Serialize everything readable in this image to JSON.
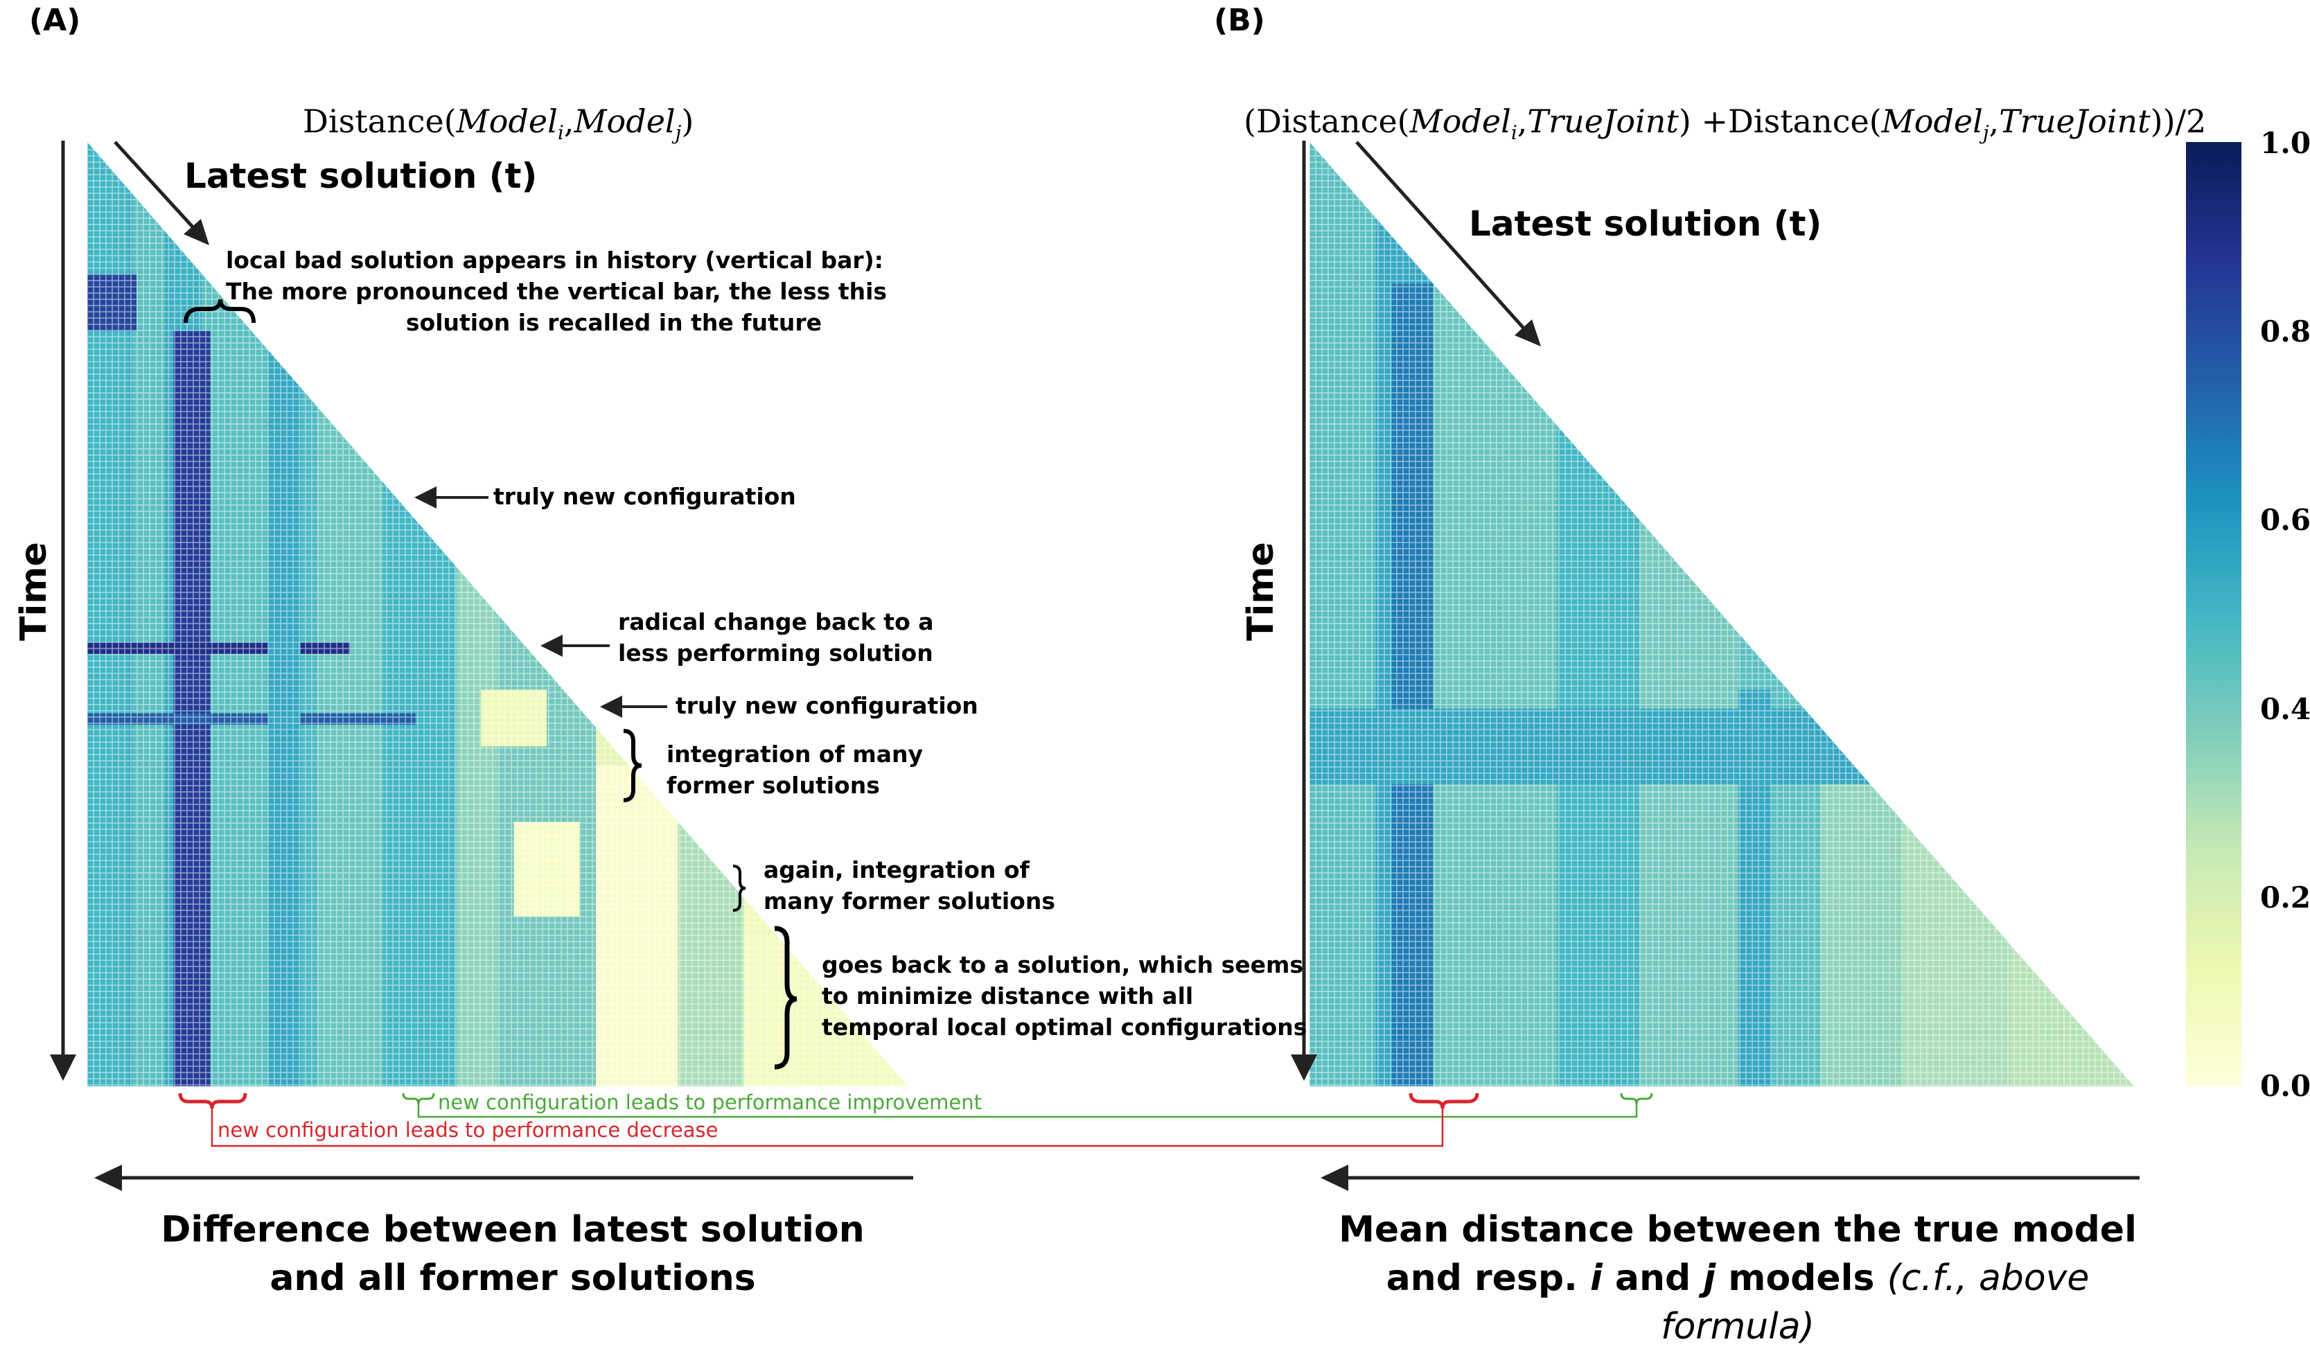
{
  "panel_a": {
    "label": "(A)",
    "formula": {
      "fn": "Distance(",
      "m1": "Model",
      "s1": "i",
      "sep": ",",
      "m2": "Model",
      "s2": "j",
      "close": ")"
    },
    "latest": "Latest solution (t)",
    "time": "Time",
    "annotations": {
      "local_bad": [
        "local bad solution appears in history (vertical bar):",
        "The more pronounced the vertical bar, the less this",
        "solution is recalled in the future"
      ],
      "truly_new_1": "truly new configuration",
      "radical": [
        "radical change back to a",
        "less performing solution"
      ],
      "truly_new_2": "truly new configuration",
      "integration": [
        "integration of many",
        "former solutions"
      ],
      "again": [
        "again, integration of",
        "many former solutions"
      ],
      "goes_back": [
        "goes back to a solution, which seems",
        "to minimize distance with all",
        "temporal local optimal  configurations"
      ]
    },
    "bottom": [
      "Difference between latest solution",
      "and all former solutions"
    ]
  },
  "panel_b": {
    "label": "(B)",
    "formula": {
      "open": "(Distance(",
      "m1": "Model",
      "s1": "i",
      "sep1": ",",
      "tj1": "TrueJoint",
      "mid": ") +Distance(",
      "m2": "Model",
      "s2": "j",
      "sep2": ",",
      "tj2": "TrueJoint",
      "close": "))/2"
    },
    "latest": "Latest solution (t)",
    "time": "Time",
    "bottom_line1": "Mean distance between the true model",
    "bottom_line2_a": "and resp. ",
    "bottom_line2_i": "i",
    "bottom_line2_b": " and ",
    "bottom_line2_j": "j",
    "bottom_line2_c": " models ",
    "bottom_line2_note": "(c.f., above formula)"
  },
  "links": {
    "improve": "new configuration leads to performance improvement",
    "decrease": "new configuration leads to performance decrease",
    "improve_color": "#4aa83a",
    "decrease_color": "#d9252b"
  },
  "colorbar": {
    "ticks": [
      "1.0",
      "0.8",
      "0.6",
      "0.4",
      "0.2",
      "0.0"
    ],
    "colormap": "YlGnBu",
    "min": 0.0,
    "max": 1.0
  },
  "chart_data": [
    {
      "type": "heatmap",
      "shape": "lower-triangular",
      "colormap": "YlGnBu",
      "vmin": 0.0,
      "vmax": 1.0,
      "grid": false
    },
    {
      "type": "heatmap",
      "shape": "lower-triangular",
      "colormap": "YlGnBu",
      "vmin": 0.0,
      "vmax": 1.0,
      "grid": false
    }
  ]
}
